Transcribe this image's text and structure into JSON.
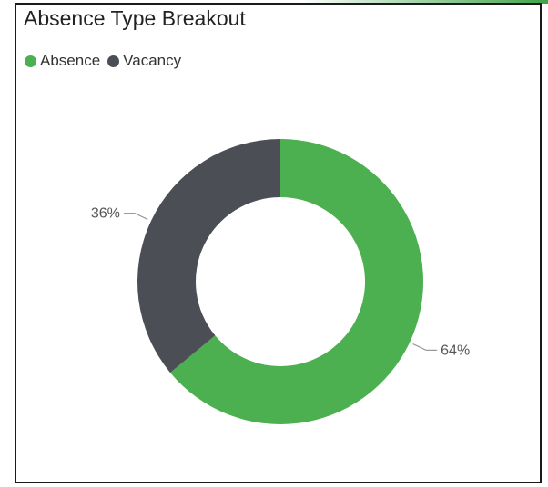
{
  "chart_data": {
    "type": "pie",
    "title": "Absence Type Breakout",
    "donut": true,
    "legend_position": "top-left",
    "categories": [
      "Absence",
      "Vacancy"
    ],
    "values": [
      64,
      36
    ],
    "labels": [
      "64%",
      "36%"
    ],
    "colors": [
      "#4caf50",
      "#4b4f55"
    ]
  }
}
